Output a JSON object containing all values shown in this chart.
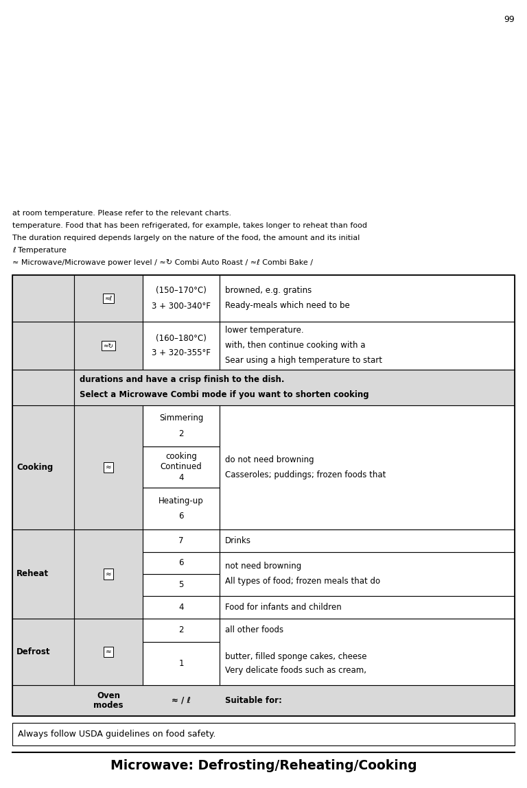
{
  "title": "Microwave: Defrosting/Reheating/Cooking",
  "page_number": "99",
  "bg_color": "#ffffff",
  "table_bg": "#d9d9d9",
  "safety_note": "Always follow USDA guidelines on food safety.",
  "ml": 0.028,
  "mr": 0.972
}
